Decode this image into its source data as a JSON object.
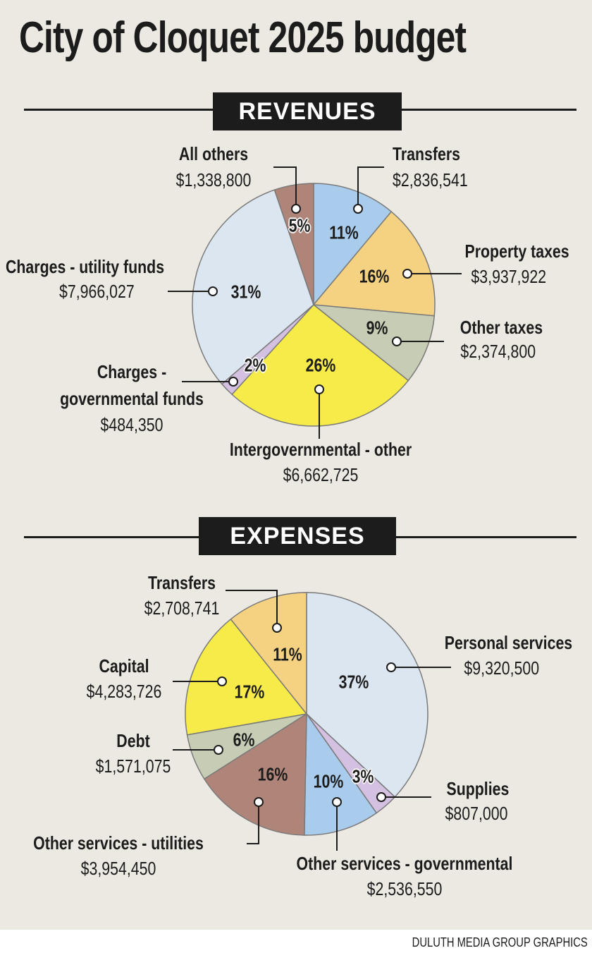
{
  "title": "City of Cloquet 2025 budget",
  "credit": "DULUTH MEDIA GROUP GRAPHICS",
  "chart_data": [
    {
      "type": "pie",
      "title": "REVENUES",
      "labels": [
        "Transfers",
        "Property taxes",
        "Other taxes",
        "Intergovernmental - other",
        "Charges - governmental funds",
        "Charges - utility funds",
        "All others"
      ],
      "label_lines": [
        [
          "Transfers"
        ],
        [
          "Property taxes"
        ],
        [
          "Other taxes"
        ],
        [
          "Intergovernmental - other"
        ],
        [
          "Charges -",
          "governmental funds"
        ],
        [
          "Charges - utility funds"
        ],
        [
          "All others"
        ]
      ],
      "values": [
        2836541,
        3937922,
        2374800,
        6662725,
        484350,
        7966027,
        1338800
      ],
      "value_labels": [
        "$2,836,541",
        "$3,937,922",
        "$2,374,800",
        "$6,662,725",
        "$484,350",
        "$7,966,027",
        "$1,338,800"
      ],
      "percent_labels": [
        "11%",
        "16%",
        "9%",
        "26%",
        "2%",
        "31%",
        "5%"
      ],
      "colors": [
        "#a9cbec",
        "#f4d281",
        "#c6cdb4",
        "#f6eb48",
        "#d4c1e1",
        "#dbe6f0",
        "#b08579"
      ]
    },
    {
      "type": "pie",
      "title": "EXPENSES",
      "labels": [
        "Personal services",
        "Supplies",
        "Other services - governmental",
        "Other services - utilities",
        "Debt",
        "Capital",
        "Transfers"
      ],
      "values": [
        9320500,
        807000,
        2536550,
        3954450,
        1571075,
        4283726,
        2708741
      ],
      "value_labels": [
        "$9,320,500",
        "$807,000",
        "$2,536,550",
        "$3,954,450",
        "$1,571,075",
        "$4,283,726",
        "$2,708,741"
      ],
      "percent_labels": [
        "37%",
        "3%",
        "10%",
        "16%",
        "6%",
        "17%",
        "11%"
      ],
      "colors": [
        "#dbe6f0",
        "#d4c1e1",
        "#a9cbec",
        "#b08579",
        "#c6cdb4",
        "#f6eb48",
        "#f4d281"
      ]
    }
  ]
}
